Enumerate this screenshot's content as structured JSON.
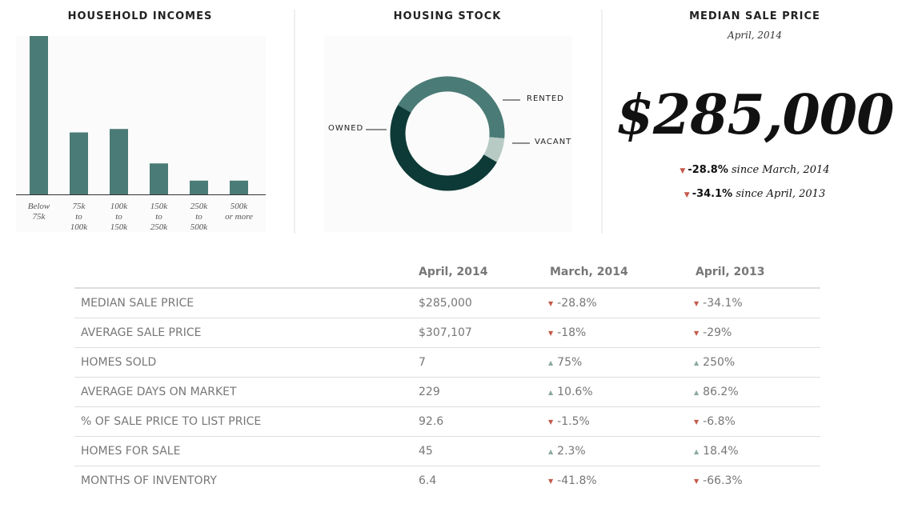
{
  "chart_data": [
    {
      "type": "bar",
      "title": "HOUSEHOLD INCOMES",
      "categories": [
        "Below\n75k",
        "75k\nto\n100k",
        "100k\nto\n150k",
        "150k\nto\n250k",
        "250k\nto\n500k",
        "500k\nor more"
      ],
      "values": [
        46,
        18,
        19,
        9,
        4,
        4
      ],
      "color": "#4b7b76"
    },
    {
      "type": "donut",
      "title": "HOUSING STOCK",
      "categories": [
        "RENTED",
        "VACANT",
        "OWNED"
      ],
      "values": [
        43,
        7,
        50
      ],
      "colors": [
        "#4b7b76",
        "#b7cbc4",
        "#0d3a36"
      ]
    }
  ],
  "price_panel": {
    "title": "MEDIAN SALE PRICE",
    "subtitle": "April, 2014",
    "value": "$285,000",
    "changes": [
      {
        "change": "-28.8%",
        "text": "since March, 2014"
      },
      {
        "change": "-34.1%",
        "text": "since April, 2013"
      }
    ]
  },
  "table": {
    "columns": [
      "April, 2014",
      "March, 2014",
      "April, 2013"
    ],
    "rows": [
      {
        "label": "MEDIAN SALE PRICE",
        "values": [
          "$285,000",
          "-28.8%",
          "-34.1%"
        ]
      },
      {
        "label": "AVERAGE SALE PRICE",
        "values": [
          "$307,107",
          "-18%",
          "-29%"
        ]
      },
      {
        "label": "HOMES SOLD",
        "values": [
          "7",
          "75%",
          "250%"
        ]
      },
      {
        "label": "AVERAGE DAYS ON MARKET",
        "values": [
          "229",
          "10.6%",
          "86.2%"
        ]
      },
      {
        "label": "% OF SALE PRICE TO LIST PRICE",
        "values": [
          "92.6",
          "-1.5%",
          "-6.8%"
        ]
      },
      {
        "label": "HOMES FOR SALE",
        "values": [
          "45",
          "2.3%",
          "18.4%"
        ]
      },
      {
        "label": "MONTHS OF INVENTORY",
        "values": [
          "6.4",
          "-41.8%",
          "-66.3%"
        ]
      }
    ]
  }
}
